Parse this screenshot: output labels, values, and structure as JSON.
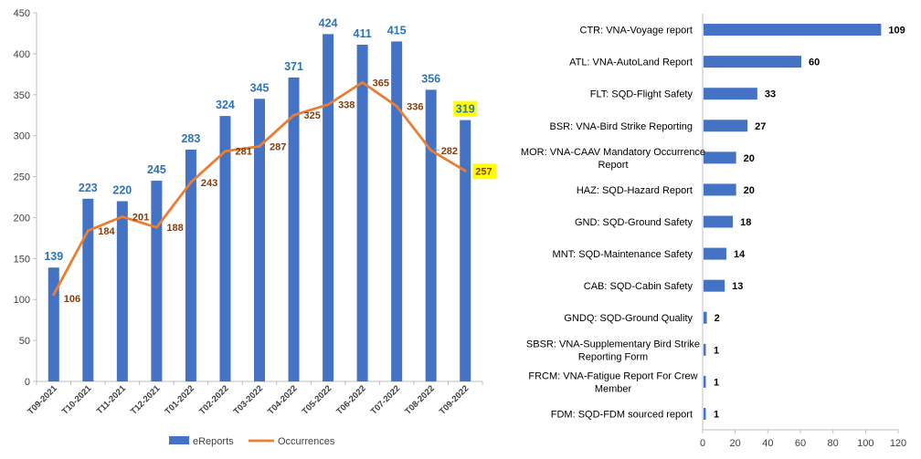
{
  "chart_data": [
    {
      "type": "bar",
      "categories": [
        "T09-2021",
        "T10-2021",
        "T11-2021",
        "T12-2021",
        "T01-2022",
        "T02-2022",
        "T03-2022",
        "T04-2022",
        "T05-2022",
        "T06-2022",
        "T07-2022",
        "T08-2022",
        "T09-2022"
      ],
      "series": [
        {
          "name": "eReports",
          "type": "bar",
          "values": [
            139,
            223,
            220,
            245,
            283,
            324,
            345,
            371,
            424,
            411,
            415,
            356,
            319
          ],
          "color": "#4472C4"
        },
        {
          "name": "Occurrences",
          "type": "line",
          "values": [
            106,
            184,
            201,
            188,
            243,
            281,
            287,
            325,
            338,
            365,
            336,
            282,
            257
          ],
          "color": "#ED7D31"
        }
      ],
      "ylim": [
        0,
        450
      ],
      "yticks": [
        0,
        50,
        100,
        150,
        200,
        250,
        300,
        350,
        400,
        450
      ],
      "grid": false,
      "legend": "bottom",
      "bar_label_color": "#2E75B6",
      "line_label_color": "#843C0C",
      "highlight_color": "#FFFF00"
    },
    {
      "type": "bar",
      "orientation": "horizontal",
      "categories": [
        [
          "CTR: VNA-Voyage report"
        ],
        [
          "ATL: VNA-AutoLand Report"
        ],
        [
          "FLT: SQD-Flight Safety"
        ],
        [
          "BSR: VNA-Bird Strike Reporting"
        ],
        [
          "MOR: VNA-CAAV Mandatory Occurrence",
          "Report"
        ],
        [
          "HAZ: SQD-Hazard Report"
        ],
        [
          "GND: SQD-Ground Safety"
        ],
        [
          "MNT: SQD-Maintenance Safety"
        ],
        [
          "CAB: SQD-Cabin Safety"
        ],
        [
          "GNDQ: SQD-Ground Quality"
        ],
        [
          "SBSR: VNA-Supplementary Bird Strike",
          "Reporting Form"
        ],
        [
          "FRCM: VNA-Fatigue Report For Crew",
          "Member"
        ],
        [
          "FDM: SQD-FDM sourced report"
        ]
      ],
      "values": [
        109,
        60,
        33,
        27,
        20,
        20,
        18,
        14,
        13,
        2,
        1,
        1,
        1
      ],
      "xlim": [
        0,
        120
      ],
      "xticks": [
        0,
        20,
        40,
        60,
        80,
        100,
        120
      ],
      "color": "#4472C4"
    }
  ]
}
